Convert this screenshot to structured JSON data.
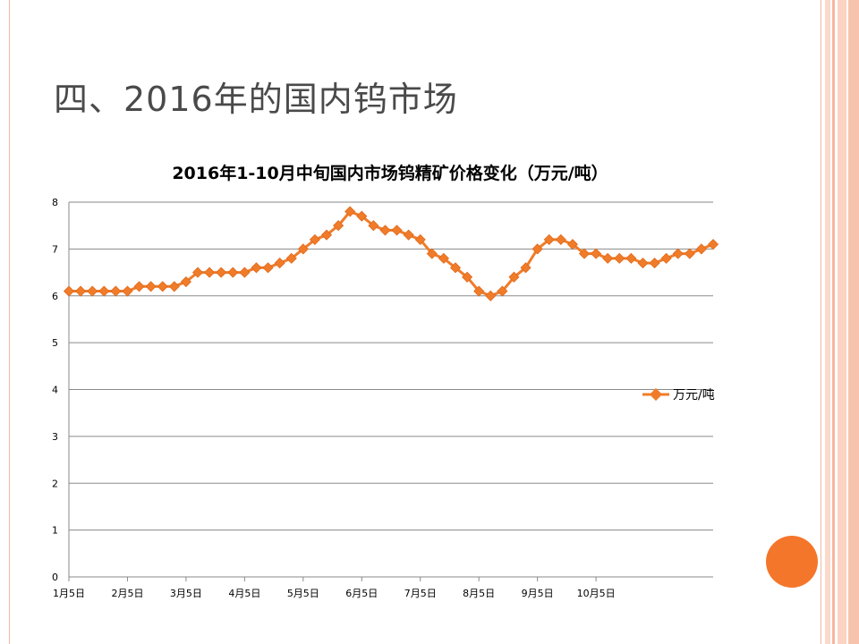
{
  "slide": {
    "title": "四、2016年的国内钨市场"
  },
  "colors": {
    "series": "#f07c2a",
    "accent": "#f4762b",
    "frame": "#f2b8a6"
  },
  "chart_data": {
    "type": "line",
    "title": "2016年1-10月中旬国内市场钨精矿价格变化（万元/吨）",
    "xlabel": "",
    "ylabel": "",
    "ylim": [
      0,
      8
    ],
    "yticks": [
      "0",
      "1",
      "2",
      "3",
      "4",
      "5",
      "6",
      "7",
      "8"
    ],
    "xtick_labels": [
      "1月5日",
      "2月5日",
      "3月5日",
      "4月5日",
      "5月5日",
      "6月5日",
      "7月5日",
      "8月5日",
      "9月5日",
      "10月5日"
    ],
    "xtick_index": [
      0,
      5,
      10,
      15,
      20,
      25,
      30,
      35,
      40,
      45
    ],
    "grid": true,
    "legend_position": "right",
    "series": [
      {
        "name": "万元/吨",
        "values": [
          6.1,
          6.1,
          6.1,
          6.1,
          6.1,
          6.1,
          6.2,
          6.2,
          6.2,
          6.2,
          6.3,
          6.5,
          6.5,
          6.5,
          6.5,
          6.5,
          6.6,
          6.6,
          6.7,
          6.8,
          7.0,
          7.2,
          7.3,
          7.5,
          7.8,
          7.7,
          7.5,
          7.4,
          7.4,
          7.3,
          7.2,
          6.9,
          6.8,
          6.6,
          6.4,
          6.1,
          6.0,
          6.1,
          6.4,
          6.6,
          7.0,
          7.2,
          7.2,
          7.1,
          6.9,
          6.9,
          6.8,
          6.8,
          6.8,
          6.7,
          6.7,
          6.8,
          6.9,
          6.9,
          7.0,
          7.1
        ]
      }
    ]
  }
}
